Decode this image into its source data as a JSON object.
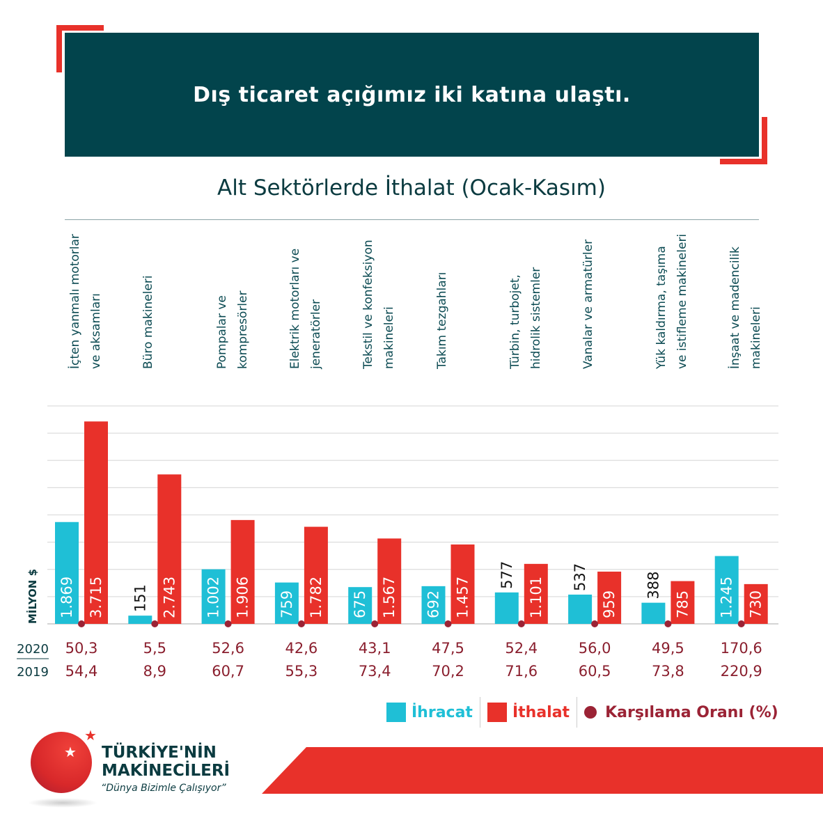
{
  "header": {
    "title": "Dış ticaret açığımız iki katına ulaştı."
  },
  "chart_data": {
    "type": "bar",
    "title": "Alt Sektörlerde İthalat (Ocak-Kasım)",
    "ylabel": "MİLYON $",
    "ylim": [
      0,
      4000
    ],
    "grid": true,
    "categories": [
      "İçten yanmalı motorlar\nve aksamları",
      "Büro makineleri",
      "Pompalar ve\nkompresörler",
      "Elektrik motorları ve\njeneratörler",
      "Tekstil ve konfeksiyon\nmakineleri",
      "Takım tezgahları",
      "Türbin, turbojet,\nhidrolik sistemler",
      "Vanalar ve armatürler",
      "Yük kaldırma, taşıma\nve istifleme makineleri",
      "İnşaat ve madencilik\nmakineleri"
    ],
    "series": [
      {
        "name": "İhracat",
        "color": "#1fbfd6",
        "values": [
          1869,
          151,
          1002,
          759,
          675,
          692,
          577,
          537,
          388,
          1245
        ],
        "labels": [
          "1.869",
          "151",
          "1.002",
          "759",
          "675",
          "692",
          "577",
          "537",
          "388",
          "1.245"
        ]
      },
      {
        "name": "İthalat",
        "color": "#e8312a",
        "values": [
          3715,
          2743,
          1906,
          1782,
          1567,
          1457,
          1101,
          959,
          785,
          730
        ],
        "labels": [
          "3.715",
          "2.743",
          "1.906",
          "1.782",
          "1.567",
          "1.457",
          "1.101",
          "959",
          "785",
          "730"
        ]
      }
    ],
    "coverage": {
      "name": "Karşılama Oranı (%)",
      "color": "#9b2335",
      "rows": [
        {
          "year": "2020",
          "values": [
            "50,3",
            "5,5",
            "52,6",
            "42,6",
            "43,1",
            "47,5",
            "52,4",
            "56,0",
            "49,5",
            "170,6"
          ]
        },
        {
          "year": "2019",
          "values": [
            "54,4",
            "8,9",
            "60,7",
            "55,3",
            "73,4",
            "70,2",
            "71,6",
            "60,5",
            "73,8",
            "220,9"
          ]
        }
      ]
    }
  },
  "legend": {
    "export": "İhracat",
    "import": "İthalat",
    "coverage": "Karşılama Oranı (%)"
  },
  "brand": {
    "line1": "TÜRKİYE'NİN",
    "line2": "MAKİNECİLERİ",
    "slogan": "“Dünya Bizimle Çalışıyor”"
  }
}
